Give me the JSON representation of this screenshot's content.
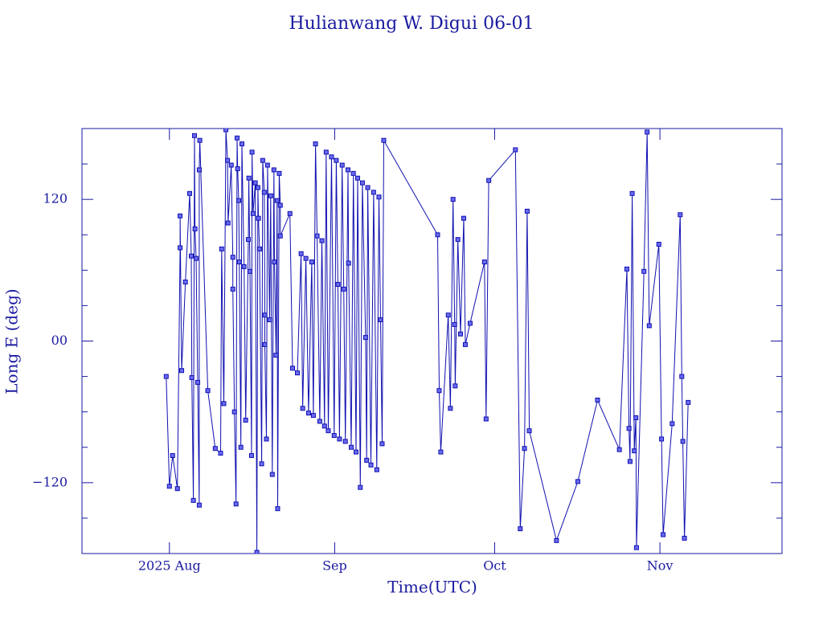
{
  "chart_data": {
    "type": "line",
    "title": "Hulianwang W. Digui 06-01",
    "xlabel": "Time(UTC)",
    "ylabel": "Long E (deg)",
    "color": "#1010b0",
    "markers": true,
    "xlim": [
      -16.4,
      114.9
    ],
    "xticks": [
      {
        "value": 0,
        "label": "2025 Aug"
      },
      {
        "value": 31,
        "label": "Sep"
      },
      {
        "value": 61,
        "label": "Oct"
      },
      {
        "value": 92,
        "label": "Nov"
      }
    ],
    "ylim": [
      -180,
      180
    ],
    "yticks": [
      {
        "value": -120,
        "label": "−120"
      },
      {
        "value": 0,
        "label": "00"
      },
      120
    ],
    "yminorticks": [
      -150,
      -90,
      -60,
      -30,
      30,
      60,
      90,
      150
    ],
    "x": [
      -0.6,
      0,
      0.6,
      1.5,
      2.0,
      2.0,
      2.3,
      3.0,
      3.8,
      4.1,
      4.2,
      4.5,
      4.7,
      4.8,
      5.0,
      5.3,
      5.6,
      5.6,
      5.7,
      7.2,
      8.6,
      9.6,
      9.8,
      10.2,
      10.6,
      10.9,
      11.0,
      11.6,
      11.9,
      11.9,
      12.2,
      12.5,
      12.7,
      12.8,
      13.0,
      13.1,
      13.4,
      13.6,
      14.0,
      14.3,
      14.8,
      14.9,
      15.1,
      15.4,
      15.5,
      15.7,
      16.1,
      16.4,
      16.6,
      16.7,
      16.9,
      17.3,
      17.5,
      17.8,
      17.9,
      17.9,
      18.2,
      18.4,
      18.8,
      19.0,
      19.3,
      19.6,
      19.7,
      20.0,
      20.2,
      20.3,
      20.6,
      20.8,
      20.8,
      22.6,
      23.1,
      24.0,
      24.7,
      25.0,
      25.6,
      26.1,
      26.7,
      27.0,
      27.4,
      27.7,
      28.2,
      28.6,
      29.1,
      29.4,
      29.8,
      30.4,
      30.9,
      31.3,
      31.6,
      31.9,
      32.4,
      32.7,
      33.0,
      33.5,
      33.6,
      34.1,
      34.5,
      35.0,
      35.3,
      35.8,
      36.2,
      36.8,
      37.0,
      37.2,
      37.8,
      38.3,
      38.9,
      39.3,
      39.6,
      39.9,
      40.2,
      50.3,
      50.6,
      50.9,
      52.3,
      52.7,
      53.2,
      53.5,
      53.6,
      54.1,
      54.6,
      55.2,
      55.5,
      56.4,
      59.1,
      59.4,
      59.9,
      64.9,
      65.8,
      66.6,
      67.1,
      67.5,
      72.6,
      76.6,
      80.3,
      84.4,
      85.8,
      86.2,
      86.4,
      86.8,
      87.2,
      87.5,
      87.6,
      89.0,
      89.6,
      90.0,
      91.8,
      92.3,
      92.6,
      94.3,
      95.8,
      96.1,
      96.3,
      96.6,
      97.3
    ],
    "values": [
      -30,
      -123,
      -97,
      -125,
      79,
      106,
      -25,
      50,
      125,
      72,
      -31,
      -135,
      174,
      95,
      70,
      -35,
      -139,
      145,
      170,
      -42,
      -91,
      -95,
      78,
      -53,
      179,
      153,
      100,
      149,
      71,
      44,
      -60,
      -138,
      172,
      146,
      119,
      67,
      -90,
      167,
      63,
      -67,
      86,
      138,
      59,
      -97,
      160,
      108,
      134,
      -179,
      130,
      104,
      78,
      -104,
      153,
      126,
      22,
      -3,
      -83,
      149,
      18,
      123,
      -113,
      145,
      67,
      -12,
      119,
      -142,
      142,
      115,
      89,
      108,
      -23,
      -27,
      74,
      -57,
      70,
      -61,
      67,
      -63,
      167,
      89,
      -68,
      85,
      -72,
      160,
      -76,
      156,
      -80,
      153,
      48,
      -83,
      149,
      44,
      -85,
      145,
      66,
      -90,
      142,
      -94,
      138,
      -124,
      134,
      3,
      -101,
      130,
      -105,
      126,
      -109,
      122,
      18,
      -87,
      170,
      90,
      -42,
      -94,
      22,
      -57,
      120,
      14,
      -38,
      86,
      6,
      104,
      -3,
      15,
      67,
      -66,
      136,
      162,
      -159,
      -91,
      110,
      -76,
      -169,
      -119,
      -50,
      -92,
      61,
      -74,
      -102,
      125,
      -93,
      -65,
      -175,
      59,
      177,
      13,
      82,
      -83,
      -164,
      -70,
      107,
      -30,
      -85,
      -167,
      -52
    ]
  }
}
